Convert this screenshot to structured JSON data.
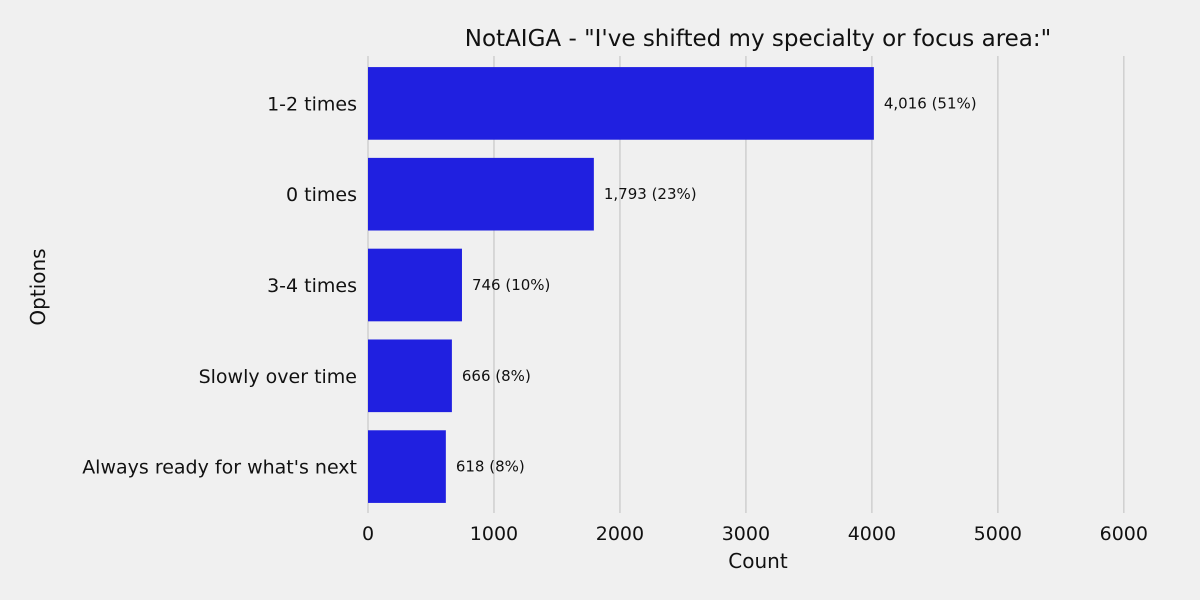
{
  "chart_data": {
    "type": "bar",
    "orientation": "horizontal",
    "title": "NotAIGA - \"I've shifted my specialty or focus area:\"",
    "xlabel": "Count",
    "ylabel": "Options",
    "categories": [
      "1-2 times",
      "0 times",
      "3-4 times",
      "Slowly over time",
      "Always ready for what's next"
    ],
    "values": [
      4016,
      1793,
      746,
      666,
      618
    ],
    "value_labels": [
      "4,016 (51%)",
      "1,793 (23%)",
      "746 (10%)",
      "666 (8%)",
      "618 (8%)"
    ],
    "xlim": [
      0,
      6200
    ],
    "xticks": [
      0,
      1000,
      2000,
      3000,
      4000,
      5000,
      6000
    ],
    "grid": "vertical",
    "bar_color": "#2020e0",
    "background": "#f0f0f0"
  }
}
